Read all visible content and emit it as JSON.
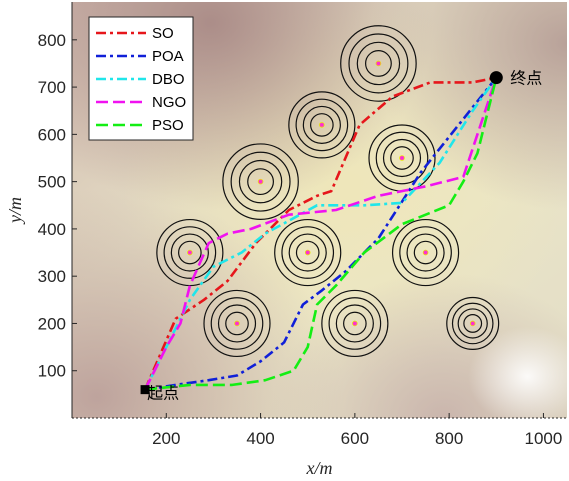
{
  "chart_data": {
    "type": "line",
    "title": "",
    "xlabel": "x/m",
    "ylabel": "y/m",
    "xlim": [
      0,
      1050
    ],
    "ylim": [
      0,
      880
    ],
    "xticks": [
      "200",
      "400",
      "600",
      "800",
      "1000"
    ],
    "yticks": [
      "100",
      "200",
      "300",
      "400",
      "500",
      "600",
      "700",
      "800"
    ],
    "legend_position": "top-left",
    "start": {
      "label": "起点",
      "x": 155,
      "y": 60
    },
    "end": {
      "label": "终点",
      "x": 900,
      "y": 720
    },
    "obstacles": [
      {
        "x": 650,
        "y": 750,
        "r": 80
      },
      {
        "x": 530,
        "y": 620,
        "r": 70
      },
      {
        "x": 700,
        "y": 550,
        "r": 70
      },
      {
        "x": 400,
        "y": 500,
        "r": 80
      },
      {
        "x": 250,
        "y": 350,
        "r": 70
      },
      {
        "x": 500,
        "y": 350,
        "r": 70
      },
      {
        "x": 750,
        "y": 350,
        "r": 70
      },
      {
        "x": 350,
        "y": 200,
        "r": 70
      },
      {
        "x": 600,
        "y": 200,
        "r": 70
      },
      {
        "x": 850,
        "y": 200,
        "r": 55
      }
    ],
    "series": [
      {
        "name": "SO",
        "color": "#e6161b",
        "dash": "10 4 3 4",
        "x": [
          155,
          220,
          280,
          330,
          390,
          460,
          520,
          550,
          610,
          680,
          760,
          850,
          900
        ],
        "y": [
          60,
          210,
          250,
          290,
          370,
          440,
          470,
          480,
          620,
          680,
          710,
          710,
          720
        ]
      },
      {
        "name": "POA",
        "color": "#1020d8",
        "dash": "10 4 3 4",
        "x": [
          155,
          220,
          290,
          350,
          400,
          450,
          490,
          530,
          580,
          650,
          740,
          820,
          900
        ],
        "y": [
          60,
          70,
          80,
          90,
          120,
          160,
          240,
          270,
          310,
          380,
          520,
          620,
          720
        ]
      },
      {
        "name": "DBO",
        "color": "#20e6ea",
        "dash": "10 4 3 4",
        "x": [
          155,
          200,
          250,
          300,
          360,
          410,
          520,
          620,
          700,
          780,
          850,
          900
        ],
        "y": [
          60,
          150,
          250,
          320,
          350,
          390,
          450,
          450,
          455,
          540,
          650,
          720
        ]
      },
      {
        "name": "NGO",
        "color": "#f012f0",
        "dash": "12 5",
        "x": [
          155,
          200,
          230,
          250,
          290,
          330,
          380,
          460,
          560,
          650,
          750,
          830,
          900
        ],
        "y": [
          60,
          150,
          200,
          280,
          370,
          390,
          400,
          430,
          440,
          470,
          490,
          510,
          720
        ]
      },
      {
        "name": "PSO",
        "color": "#14ee14",
        "dash": "12 5",
        "x": [
          155,
          250,
          340,
          410,
          470,
          500,
          520,
          560,
          620,
          700,
          800,
          830,
          860,
          900
        ],
        "y": [
          60,
          70,
          70,
          80,
          100,
          150,
          240,
          280,
          350,
          410,
          450,
          500,
          560,
          720
        ]
      }
    ]
  }
}
